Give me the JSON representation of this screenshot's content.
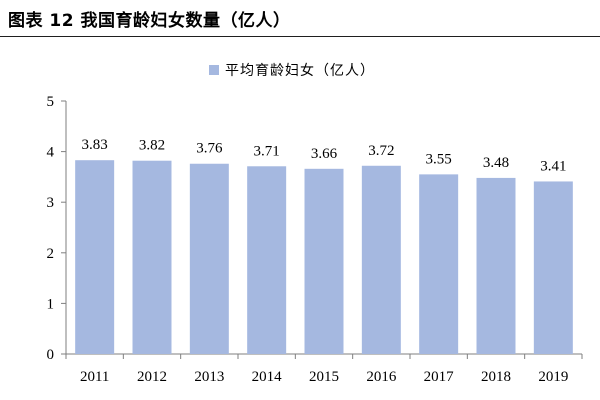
{
  "figure": {
    "title": "图表 12 我国育龄妇女数量（亿人）"
  },
  "chart_data": {
    "type": "bar",
    "categories": [
      "2011",
      "2012",
      "2013",
      "2014",
      "2015",
      "2016",
      "2017",
      "2018",
      "2019"
    ],
    "series": [
      {
        "name": "平均育龄妇女（亿人）",
        "values": [
          3.83,
          3.82,
          3.76,
          3.71,
          3.66,
          3.72,
          3.55,
          3.48,
          3.41
        ],
        "color": "#a5b8e0"
      }
    ],
    "title": "",
    "xlabel": "",
    "ylabel": "",
    "ylim": [
      0,
      5
    ],
    "yticks": [
      0,
      1,
      2,
      3,
      4,
      5
    ],
    "grid": false,
    "legend": "top-center",
    "data_labels": true
  }
}
